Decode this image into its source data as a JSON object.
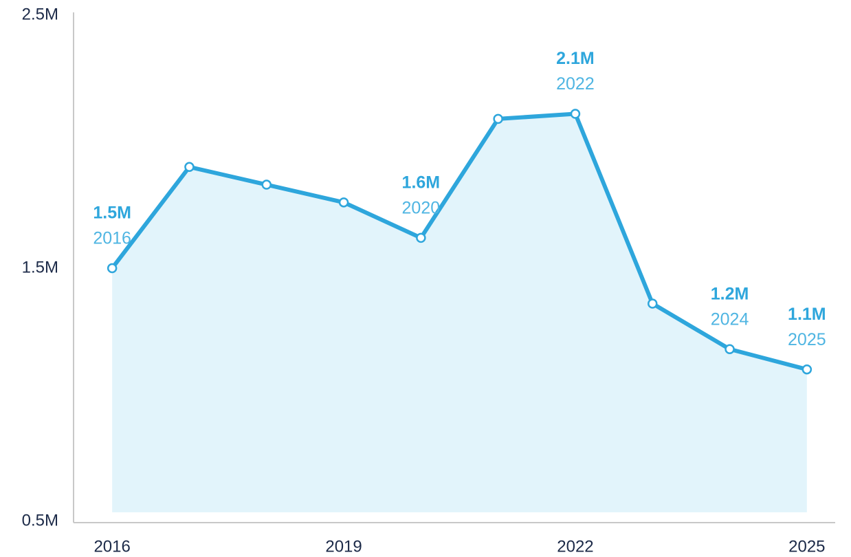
{
  "chart_data": {
    "type": "area",
    "x": [
      2016,
      2017,
      2018,
      2019,
      2020,
      2021,
      2022,
      2023,
      2024,
      2025
    ],
    "series": [
      {
        "color": "#2ea6dc",
        "fill": "#e2f4fb",
        "values": [
          1500000,
          1900000,
          1830000,
          1760000,
          1620000,
          2090000,
          2110000,
          1360000,
          1180000,
          1100000
        ],
        "value_labels": [
          "1.5M",
          null,
          null,
          null,
          "1.6M",
          null,
          "2.1M",
          null,
          "1.2M",
          "1.1M"
        ]
      }
    ],
    "xlim": [
      2015.5,
      2025.5
    ],
    "xticks": [
      2016,
      2019,
      2022,
      2025
    ],
    "ylim": [
      500000,
      2500000
    ],
    "yticks": [
      {
        "value": 500000,
        "label": "0.5M"
      },
      {
        "value": 1500000,
        "label": "1.5M"
      },
      {
        "value": 2500000,
        "label": "2.5M"
      }
    ],
    "grid": false
  }
}
